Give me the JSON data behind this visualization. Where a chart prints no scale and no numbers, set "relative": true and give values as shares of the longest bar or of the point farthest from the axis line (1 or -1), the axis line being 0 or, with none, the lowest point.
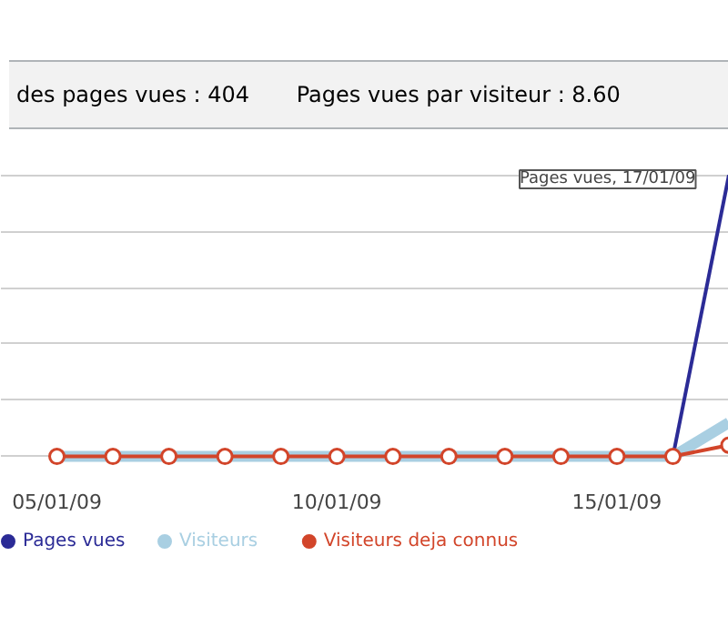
{
  "chart_data": {
    "type": "line",
    "relative": true,
    "annotations": [
      "des pages vues : 404",
      "Pages vues par visiteur : 8.60",
      "Pages vues, 17/01/09"
    ],
    "categories": [
      "05/01/09",
      null,
      null,
      null,
      null,
      "10/01/09",
      null,
      null,
      null,
      null,
      "15/01/09",
      null,
      null
    ],
    "series": [
      {
        "name": "Pages vues",
        "color": "#2b2b96",
        "marker": "none",
        "values": [
          null,
          null,
          null,
          null,
          null,
          null,
          null,
          null,
          null,
          null,
          null,
          0,
          1
        ]
      },
      {
        "name": "Visiteurs",
        "color": "#a9cfe2",
        "marker": "none",
        "values": [
          0,
          0,
          0,
          0,
          0,
          0,
          0,
          0,
          0,
          0,
          0,
          0,
          0.12
        ]
      },
      {
        "name": "Visiteurs deja connus",
        "color": "#d2452a",
        "marker": "circle",
        "values": [
          0,
          0,
          0,
          0,
          0,
          0,
          0,
          0,
          0,
          0,
          0,
          0,
          0.04
        ]
      }
    ],
    "grid": "y",
    "legend": "bottom"
  }
}
